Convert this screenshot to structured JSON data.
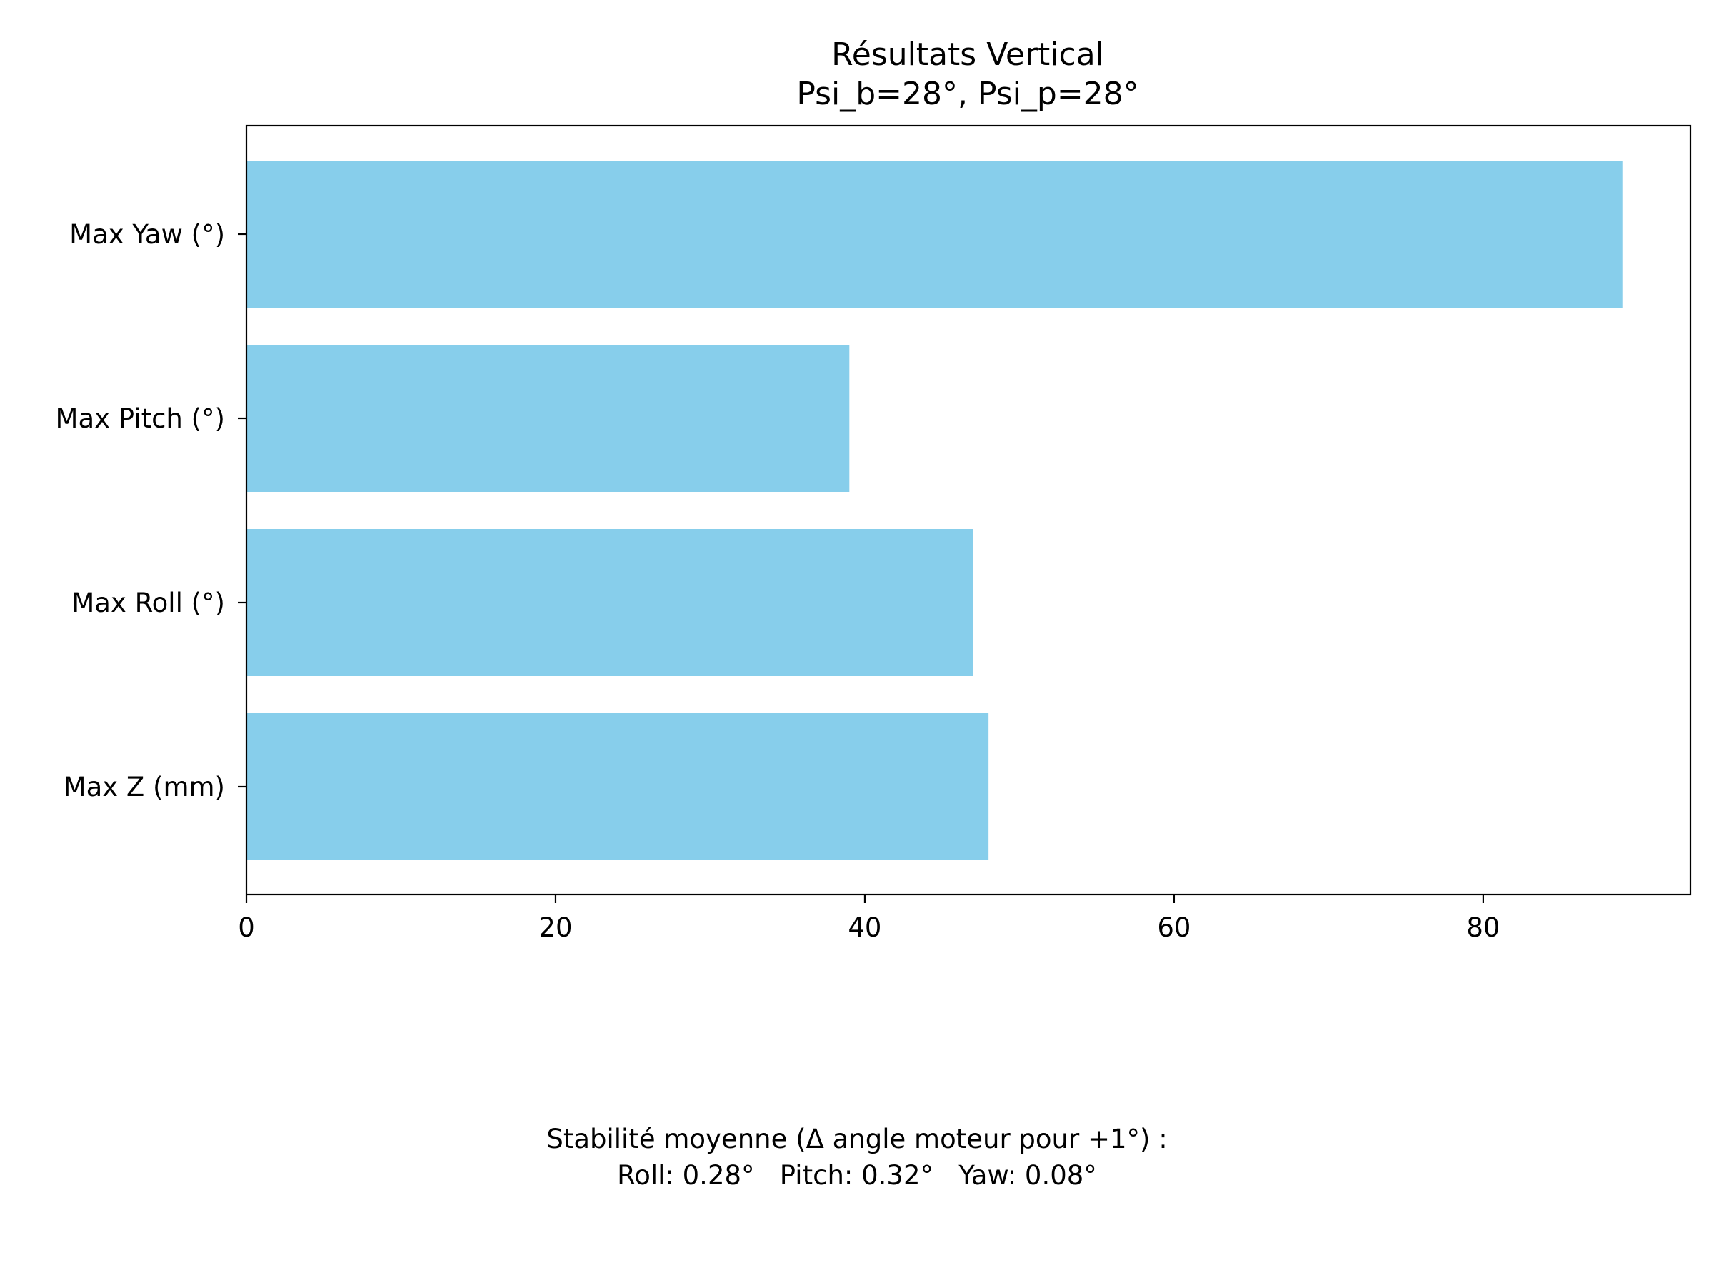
{
  "chart_data": {
    "type": "bar",
    "orientation": "horizontal",
    "title": "Résultats Vertical",
    "subtitle": "Psi_b=28°, Psi_p=28°",
    "categories": [
      "Max Yaw (°)",
      "Max Pitch (°)",
      "Max Roll (°)",
      "Max Z (mm)"
    ],
    "values": [
      89,
      39,
      47,
      48
    ],
    "xlim": [
      0,
      93.4
    ],
    "xticks": [
      0,
      20,
      40,
      60,
      80
    ],
    "xlabel": "",
    "ylabel": "",
    "grid": false,
    "bar_color": "#87CEEB"
  },
  "footer": {
    "line1": "Stabilité moyenne (Δ angle moteur pour +1°) :",
    "line2": "Roll: 0.28°   Pitch: 0.32°   Yaw: 0.08°"
  }
}
